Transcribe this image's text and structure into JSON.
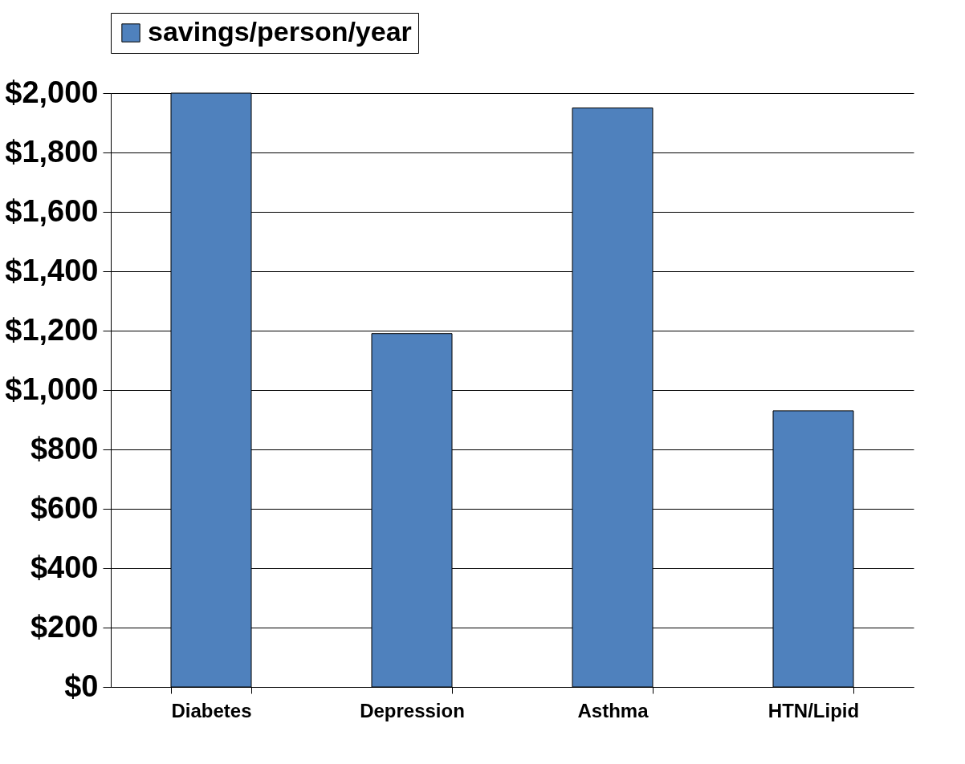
{
  "chart_data": {
    "type": "bar",
    "categories": [
      "Diabetes",
      "Depression",
      "Asthma",
      "HTN/Lipid"
    ],
    "series": [
      {
        "name": "savings/person/year",
        "color": "#4f81bd",
        "values": [
          2000,
          1190,
          1950,
          930
        ]
      }
    ],
    "ylim": [
      0,
      2000
    ],
    "yticks": [
      {
        "value": 0,
        "label": "$0"
      },
      {
        "value": 200,
        "label": "$200"
      },
      {
        "value": 400,
        "label": "$400"
      },
      {
        "value": 600,
        "label": "$600"
      },
      {
        "value": 800,
        "label": "$800"
      },
      {
        "value": 1000,
        "label": "$1,000"
      },
      {
        "value": 1200,
        "label": "$1,200"
      },
      {
        "value": 1400,
        "label": "$1,400"
      },
      {
        "value": 1600,
        "label": "$1,600"
      },
      {
        "value": 1800,
        "label": "$1,800"
      },
      {
        "value": 2000,
        "label": "$2,000"
      }
    ],
    "grid": "y",
    "legend": "top"
  }
}
